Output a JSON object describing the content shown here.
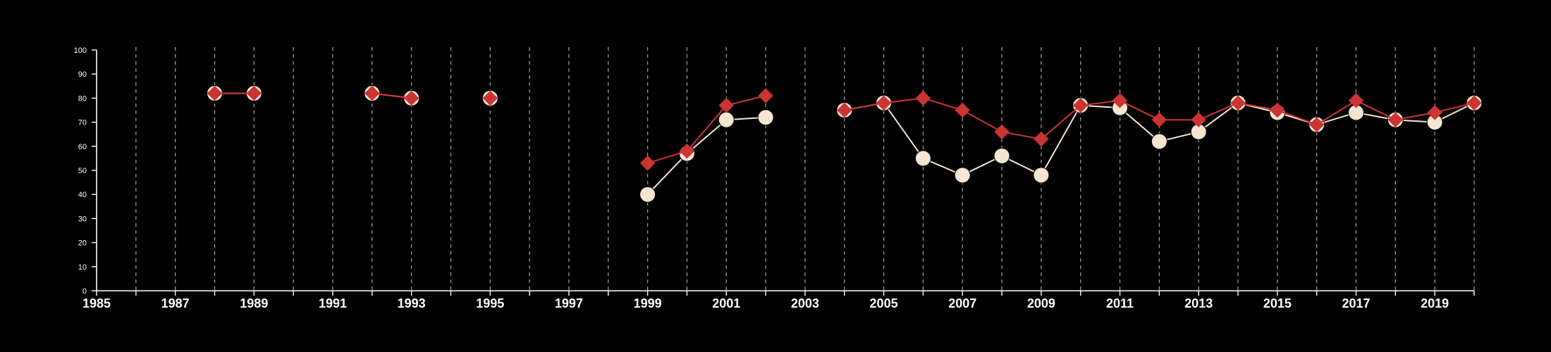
{
  "chart_data": {
    "type": "line",
    "title": "",
    "xlabel": "",
    "ylabel": "",
    "xlim": [
      1985,
      2020
    ],
    "ylim": [
      0,
      100
    ],
    "x_tick_labels": [
      "1985",
      "1987",
      "1989",
      "1991",
      "1993",
      "1995",
      "1997",
      "1999",
      "2001",
      "2003",
      "2005",
      "2007",
      "2009",
      "2011",
      "2013",
      "2015",
      "2017",
      "2019"
    ],
    "y_tick_labels": [
      "0",
      "10",
      "20",
      "30",
      "40",
      "50",
      "60",
      "70",
      "80",
      "90",
      "100"
    ],
    "grid": "vertical dashed lines at each year",
    "legend": "none",
    "series": [
      {
        "color": "#f5e6d3",
        "marker": "circle",
        "points": [
          [
            1988,
            82
          ],
          [
            1989,
            82
          ],
          [
            1992,
            82
          ],
          [
            1993,
            80
          ],
          [
            1995,
            80
          ],
          [
            1999,
            40
          ],
          [
            2000,
            57
          ],
          [
            2001,
            71
          ],
          [
            2002,
            72
          ],
          [
            2004,
            75
          ],
          [
            2005,
            78
          ],
          [
            2006,
            55
          ],
          [
            2007,
            48
          ],
          [
            2008,
            56
          ],
          [
            2009,
            48
          ],
          [
            2010,
            77
          ],
          [
            2011,
            76
          ],
          [
            2012,
            62
          ],
          [
            2013,
            66
          ],
          [
            2014,
            78
          ],
          [
            2015,
            74
          ],
          [
            2016,
            69
          ],
          [
            2017,
            74
          ],
          [
            2018,
            71
          ],
          [
            2019,
            70
          ],
          [
            2020,
            78
          ]
        ]
      },
      {
        "color": "#cc3333",
        "marker": "diamond",
        "points": [
          [
            1988,
            82
          ],
          [
            1989,
            82
          ],
          [
            1992,
            82
          ],
          [
            1993,
            80
          ],
          [
            1995,
            80
          ],
          [
            1999,
            53
          ],
          [
            2000,
            58
          ],
          [
            2001,
            77
          ],
          [
            2002,
            81
          ],
          [
            2004,
            75
          ],
          [
            2005,
            78
          ],
          [
            2006,
            80
          ],
          [
            2007,
            75
          ],
          [
            2008,
            66
          ],
          [
            2009,
            63
          ],
          [
            2010,
            77
          ],
          [
            2011,
            79
          ],
          [
            2012,
            71
          ],
          [
            2013,
            71
          ],
          [
            2014,
            78
          ],
          [
            2015,
            75
          ],
          [
            2016,
            69
          ],
          [
            2017,
            79
          ],
          [
            2018,
            71
          ],
          [
            2019,
            74
          ],
          [
            2020,
            78
          ]
        ]
      }
    ]
  }
}
